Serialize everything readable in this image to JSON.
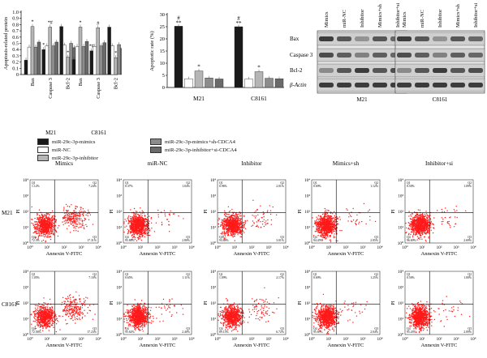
{
  "colors": {
    "mimics": "#1a1a1a",
    "nc": "#ffffff",
    "inh": "#b5b5b5",
    "mimics_sh": "#8c8c8c",
    "inh_si": "#6a6a6a",
    "dots": "#ff1a1a"
  },
  "legend": [
    {
      "label": "miR-29c-3p-mimics",
      "color": "#1a1a1a"
    },
    {
      "label": "miR-NC",
      "color": "#ffffff"
    },
    {
      "label": "miR-29c-3p-inhibitor",
      "color": "#b5b5b5"
    },
    {
      "label": "miR-29c-3p-mimics+sh-CDCA4",
      "color": "#8c8c8c"
    },
    {
      "label": "miR-29c-3p-inhibitor+si-CDCA4",
      "color": "#6a6a6a"
    }
  ],
  "chart_data": [
    {
      "type": "bar",
      "ylabel": "Apoptosis-related protein",
      "ylim": [
        0,
        1.0
      ],
      "yticks": [
        "0",
        "0.1",
        "0.2",
        "0.3",
        "0.4",
        "0.5",
        "0.6",
        "0.7",
        "0.8",
        "0.9",
        "1.0"
      ],
      "groups": [
        "M21",
        "C8161"
      ],
      "categories": [
        "Bax",
        "Caspase 3",
        "Bcl-2"
      ],
      "series": [
        {
          "values": [
            [
              0.23,
              0.4,
              0.77
            ],
            [
              0.24,
              0.38,
              0.76
            ]
          ]
        },
        {
          "values": [
            [
              0.44,
              0.46,
              0.47
            ],
            [
              0.45,
              0.45,
              0.46
            ]
          ]
        },
        {
          "values": [
            [
              0.77,
              0.76,
              0.28
            ],
            [
              0.76,
              0.75,
              0.27
            ]
          ]
        },
        {
          "values": [
            [
              0.44,
              0.46,
              0.5
            ],
            [
              0.45,
              0.46,
              0.48
            ]
          ]
        },
        {
          "values": [
            [
              0.52,
              0.52,
              0.43
            ],
            [
              0.53,
              0.51,
              0.42
            ]
          ]
        }
      ],
      "annotations": [
        "*",
        "*",
        "*#",
        "*",
        "*",
        "*#",
        "#"
      ]
    },
    {
      "type": "bar",
      "ylabel": "Apoptotic rate (%)",
      "ylim": [
        0,
        30
      ],
      "yticks": [
        "0",
        "5",
        "10",
        "15",
        "20",
        "25",
        "30"
      ],
      "categories": [
        "M21",
        "C8161"
      ],
      "series": [
        {
          "values": [
            25.2,
            25.0
          ]
        },
        {
          "values": [
            3.6,
            3.5
          ]
        },
        {
          "values": [
            6.8,
            6.5
          ]
        },
        {
          "values": [
            3.9,
            3.8
          ]
        },
        {
          "values": [
            3.5,
            3.6
          ]
        }
      ],
      "annotations": [
        "#",
        "**",
        "*"
      ]
    },
    {
      "type": "scatter",
      "title_columns": [
        "Mimics",
        "miR-NC",
        "Inhibitor",
        "Mimics+sh",
        "Inhibitor+si"
      ],
      "row_labels": [
        "M21",
        "C8161"
      ],
      "xlabel": "Annexin V-FITC",
      "ylabel": "PI",
      "ticks": [
        "10⁰",
        "10¹",
        "10²",
        "10³",
        "10⁴"
      ],
      "quadrants": [
        [
          [
            "Q1",
            "1.12%",
            "Q2",
            "7.24%",
            "Q4",
            "72.3%",
            "Q3",
            "17.31%"
          ],
          [
            "Q1",
            "0.37%",
            "Q2",
            "1.04%",
            "Q4",
            "95.86%",
            "Q3",
            "2.80%"
          ],
          [
            "Q1",
            "0.96%",
            "Q2",
            "2.01%",
            "Q4",
            "93.88%",
            "Q3",
            "3.01%"
          ],
          [
            "Q1",
            "0.69%",
            "Q2",
            "1.12%",
            "Q4",
            "94.45%",
            "Q3",
            "2.05%"
          ],
          [
            "Q1",
            "0.50%",
            "Q2",
            "1.09%",
            "Q4",
            "96.69%",
            "Q3",
            "2.69%"
          ]
        ],
        [
          [
            "Q1",
            "1.05%",
            "Q2",
            "7.10%",
            "Q4",
            "72.56%",
            "Q3",
            "17.23%"
          ],
          [
            "Q1",
            "0.65%",
            "Q2",
            "1.11%",
            "Q4",
            "95.62%",
            "Q3",
            "2.40%"
          ],
          [
            "Q1",
            "1.09%",
            "Q2",
            "2.17%",
            "Q4",
            "89.13%",
            "Q3",
            "6.72%"
          ],
          [
            "Q1",
            "0.69%",
            "Q2",
            "1.25%",
            "Q4",
            "95.69%",
            "Q3",
            "2.04%"
          ],
          [
            "Q1",
            "0.50%",
            "Q2",
            "1.00%",
            "Q4",
            "95.43%",
            "Q3",
            "2.09%"
          ]
        ]
      ]
    }
  ],
  "western_blot": {
    "lanes": [
      "Mimics",
      "miR-NC",
      "Inhibitor",
      "Mimics+sh",
      "Inhibitor+si"
    ],
    "proteins": [
      "Bax",
      "Caspase 3",
      "Bcl-2",
      "β-Actin"
    ],
    "cell_lines": [
      "M21",
      "C8161"
    ]
  }
}
